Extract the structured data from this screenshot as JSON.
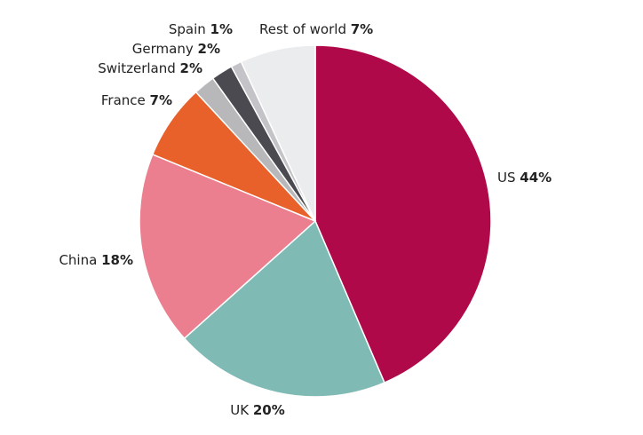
{
  "chart_data": {
    "type": "pie",
    "categories": [
      "US",
      "UK",
      "China",
      "France",
      "Switzerland",
      "Germany",
      "Spain",
      "Rest of world"
    ],
    "values": [
      44,
      20,
      18,
      7,
      2,
      2,
      1,
      7
    ],
    "value_labels": [
      "44%",
      "20%",
      "18%",
      "7%",
      "2%",
      "2%",
      "1%",
      "7%"
    ],
    "colors": [
      "#b0094a",
      "#7fbab4",
      "#ec7f8f",
      "#e8602a",
      "#b8b8bb",
      "#4a4a50",
      "#c4c4c8",
      "#ebeced"
    ]
  }
}
